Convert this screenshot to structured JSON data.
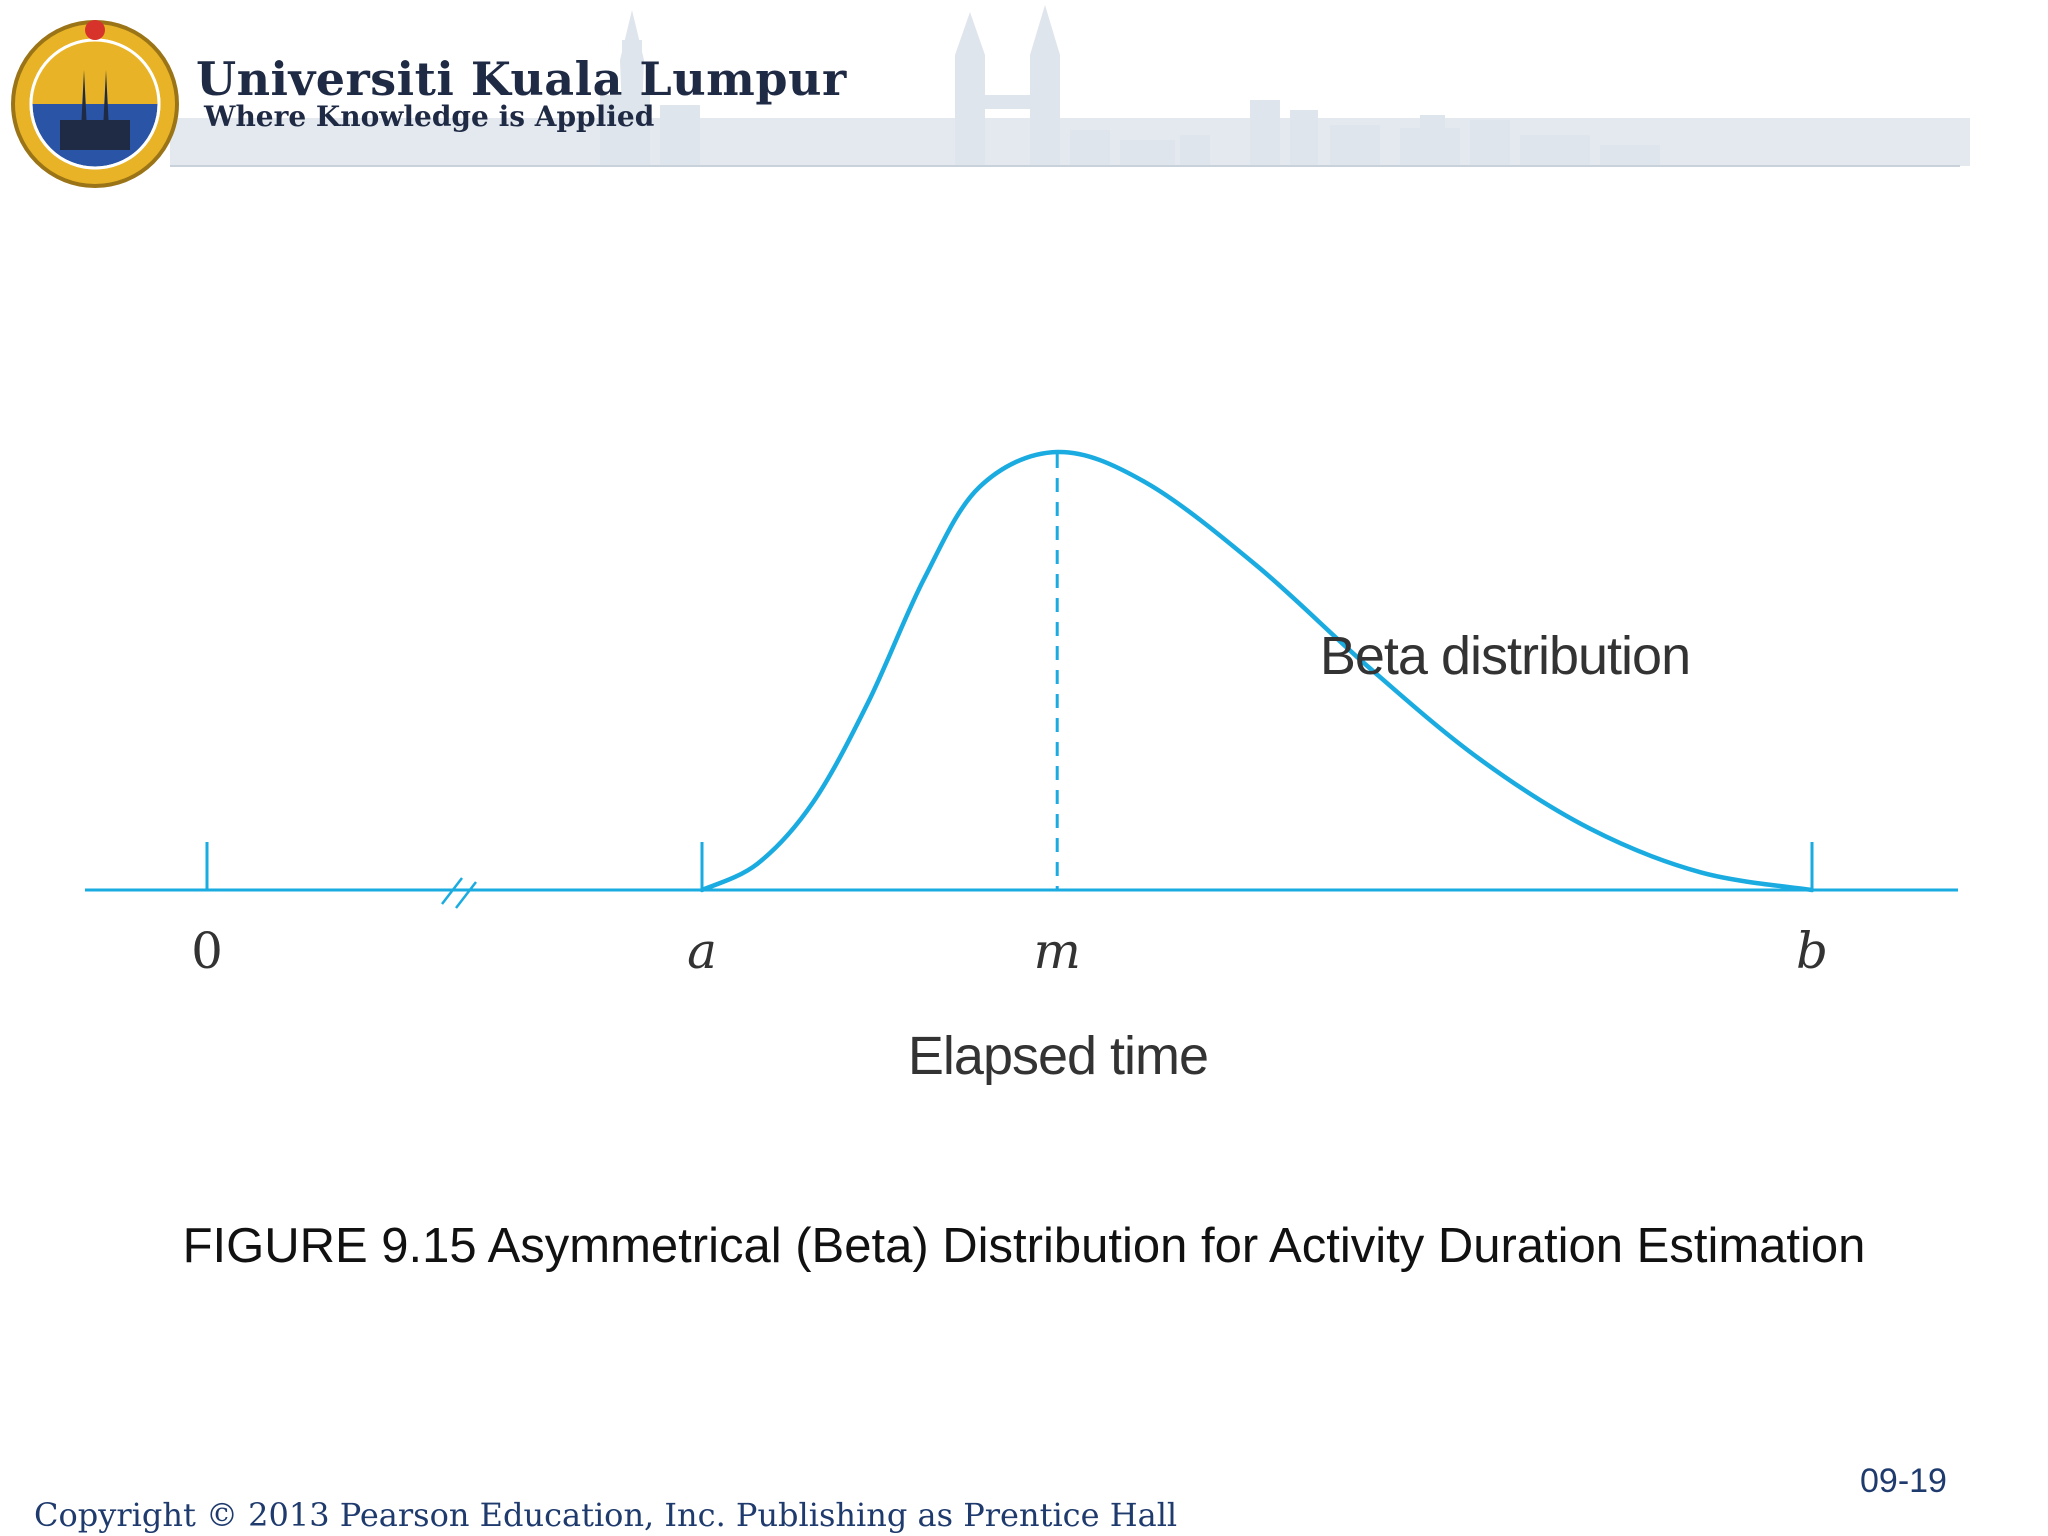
{
  "header": {
    "university_name": "Universiti Kuala Lumpur",
    "tagline": "Where Knowledge is Applied",
    "logo_text": "UNIVERSITI KUALA LUMPUR"
  },
  "chart_data": {
    "type": "line",
    "series": [
      {
        "name": "Beta distribution",
        "distribution": "beta",
        "x": [
          0.0,
          0.05,
          0.1,
          0.15,
          0.2,
          0.25,
          0.32,
          0.4,
          0.5,
          0.6,
          0.7,
          0.8,
          0.9,
          1.0
        ],
        "y": [
          0.0,
          0.06,
          0.2,
          0.43,
          0.71,
          0.92,
          1.0,
          0.93,
          0.74,
          0.51,
          0.3,
          0.14,
          0.04,
          0.0
        ]
      }
    ],
    "xlabel": "Elapsed time",
    "ylabel": "",
    "x_ticks": [
      {
        "label": "0",
        "value": -0.45
      },
      {
        "label": "a",
        "value": 0.0
      },
      {
        "label": "m",
        "value": 0.32
      },
      {
        "label": "b",
        "value": 1.0
      }
    ],
    "axis_break": true,
    "mode_marker": {
      "at": "m",
      "style": "dashed"
    },
    "annotations": [
      {
        "text": "Beta distribution"
      }
    ],
    "grid": false,
    "line_color": "#1aabe0"
  },
  "caption": "FIGURE 9.15  Asymmetrical (Beta) Distribution for Activity Duration Estimation",
  "slide_number": "09-19",
  "copyright": "Copyright © 2013 Pearson Education, Inc. Publishing as Prentice Hall"
}
